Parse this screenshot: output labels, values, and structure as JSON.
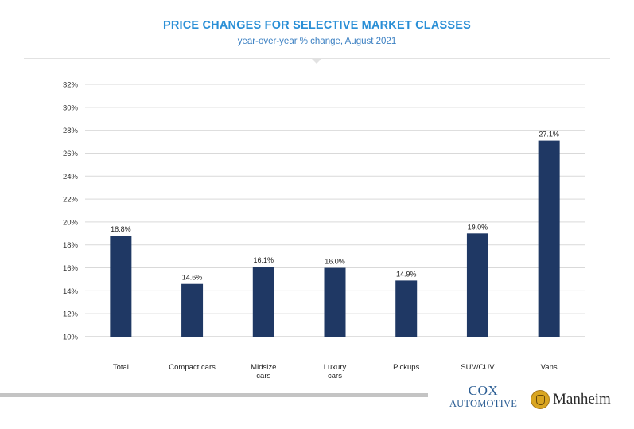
{
  "header": {
    "title": "PRICE CHANGES FOR SELECTIVE MARKET CLASSES",
    "subtitle": "year-over-year % change, August 2021"
  },
  "chart_data": {
    "type": "bar",
    "title": "PRICE CHANGES FOR SELECTIVE MARKET CLASSES",
    "subtitle": "year-over-year % change, August 2021",
    "xlabel": "",
    "ylabel": "",
    "categories": [
      [
        "Total"
      ],
      [
        "Compact cars"
      ],
      [
        "Midsize",
        "cars"
      ],
      [
        "Luxury",
        "cars"
      ],
      [
        "Pickups"
      ],
      [
        "SUV/CUV"
      ],
      [
        "Vans"
      ]
    ],
    "values": [
      18.8,
      14.6,
      16.1,
      16.0,
      14.9,
      19.0,
      27.1
    ],
    "data_labels": [
      "18.8%",
      "14.6%",
      "16.1%",
      "16.0%",
      "14.9%",
      "19.0%",
      "27.1%"
    ],
    "ylim": [
      10,
      32
    ],
    "yticks": [
      10,
      12,
      14,
      16,
      18,
      20,
      22,
      24,
      26,
      28,
      30,
      32
    ],
    "ytick_format": "%",
    "grid": true,
    "legend": "none",
    "bar_color": "#1f3864"
  },
  "footer": {
    "logos": [
      {
        "name": "Cox Automotive",
        "lines": [
          "COX",
          "AUTOMOTIVE"
        ]
      },
      {
        "name": "Manheim",
        "lines": [
          "Manheim"
        ]
      }
    ]
  }
}
